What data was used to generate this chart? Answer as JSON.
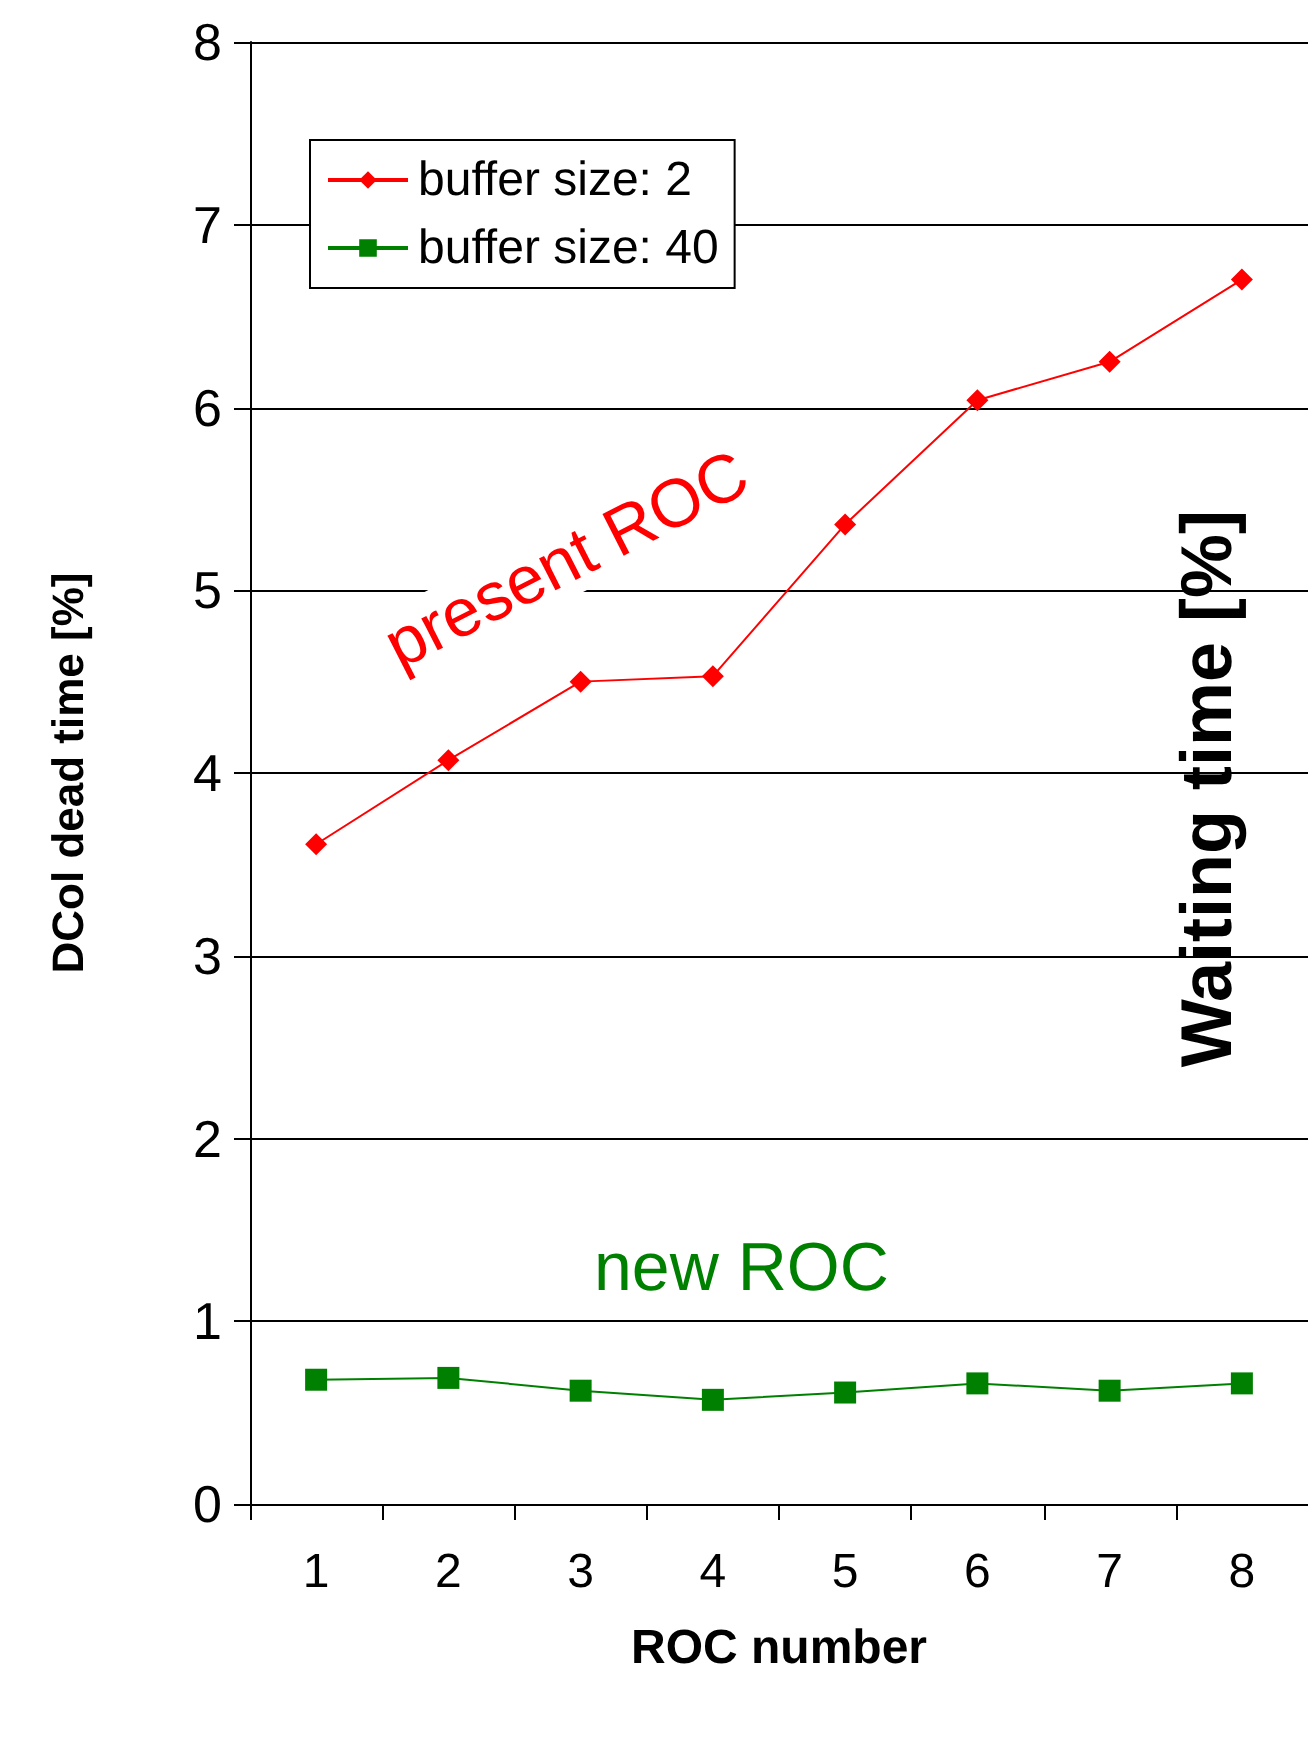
{
  "chart_data": {
    "type": "line",
    "xlabel": "ROC number",
    "ylabel": "DCol dead time [%]",
    "y2label": "Waiting time [%]",
    "categories": [
      "1",
      "2",
      "3",
      "4",
      "5",
      "6",
      "7",
      "8"
    ],
    "series": [
      {
        "name": "buffer size: 2",
        "color": "#ff0000",
        "marker": "diamond",
        "values": [
          3.61,
          4.07,
          4.5,
          4.53,
          5.36,
          6.04,
          6.25,
          6.7
        ]
      },
      {
        "name": "buffer size: 40",
        "color": "#008000",
        "marker": "square",
        "values": [
          0.68,
          0.69,
          0.62,
          0.57,
          0.61,
          0.66,
          0.62,
          0.66
        ]
      }
    ],
    "ylim": [
      0,
      8
    ],
    "yticks": [
      0,
      1,
      2,
      3,
      4,
      5,
      6,
      7,
      8
    ],
    "grid": "y",
    "legend": "top left",
    "annotations": [
      "present ROC",
      "new ROC"
    ]
  }
}
